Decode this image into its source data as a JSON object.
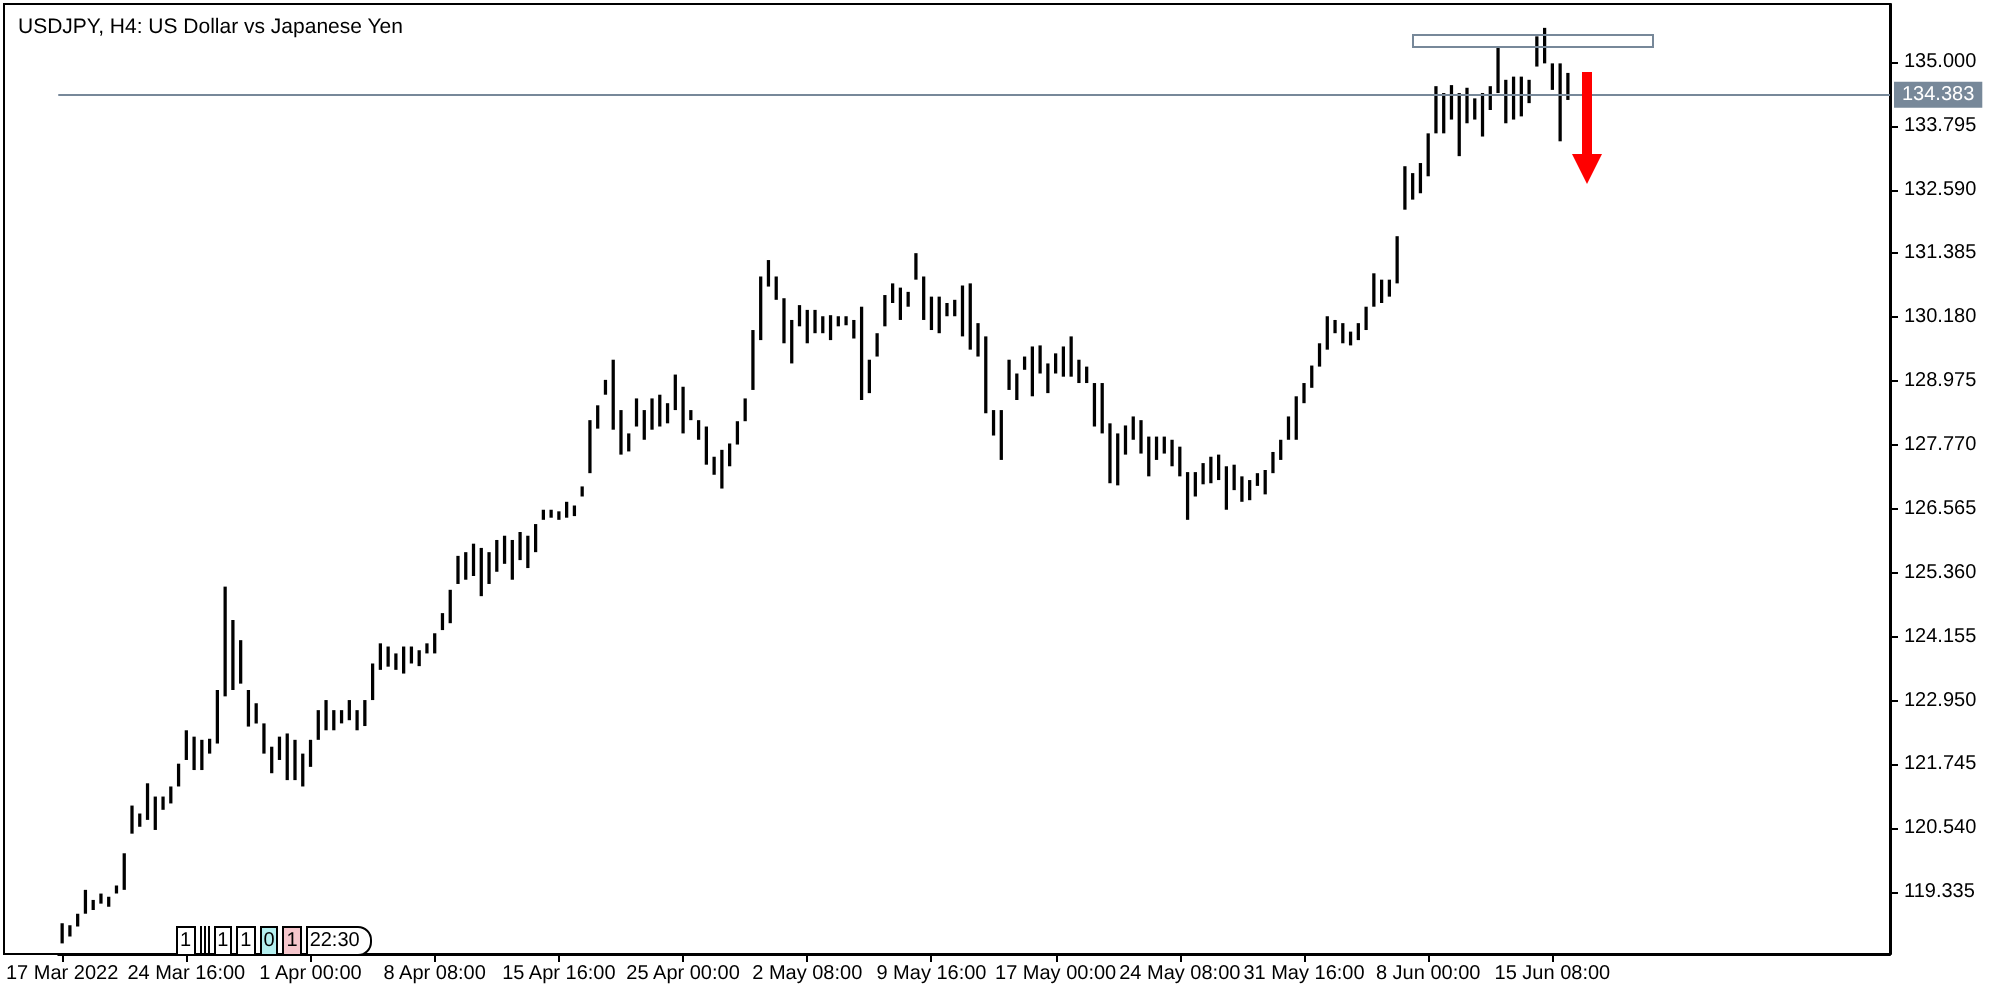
{
  "chart_data": {
    "type": "bar",
    "title": "USDJPY, H4: US Dollar vs Japanese Yen",
    "color": "#000000",
    "categories": [
      "17 Mar 2022",
      null,
      null,
      null,
      null,
      null,
      null,
      null,
      null,
      null,
      null,
      null,
      null,
      null,
      null,
      null,
      "24 Mar 16:00",
      null,
      null,
      null,
      null,
      null,
      null,
      null,
      null,
      null,
      null,
      null,
      null,
      null,
      null,
      null,
      "1 Apr 00:00",
      null,
      null,
      null,
      null,
      null,
      null,
      null,
      null,
      null,
      null,
      null,
      null,
      null,
      null,
      null,
      "8 Apr 08:00",
      null,
      null,
      null,
      null,
      null,
      null,
      null,
      null,
      null,
      null,
      null,
      null,
      null,
      null,
      null,
      "15 Apr 16:00",
      null,
      null,
      null,
      null,
      null,
      null,
      null,
      null,
      null,
      null,
      null,
      null,
      null,
      null,
      null,
      "25 Apr 00:00",
      null,
      null,
      null,
      null,
      null,
      null,
      null,
      null,
      null,
      null,
      null,
      null,
      null,
      null,
      null,
      "2 May 08:00",
      null,
      null,
      null,
      null,
      null,
      null,
      null,
      null,
      null,
      null,
      null,
      null,
      null,
      null,
      null,
      "9 May 16:00",
      null,
      null,
      null,
      null,
      null,
      null,
      null,
      null,
      null,
      null,
      null,
      null,
      null,
      null,
      null,
      "17 May 00:00",
      null,
      null,
      null,
      null,
      null,
      null,
      null,
      null,
      null,
      null,
      null,
      null,
      null,
      null,
      null,
      "24 May 08:00",
      null,
      null,
      null,
      null,
      null,
      null,
      null,
      null,
      null,
      null,
      null,
      null,
      null,
      null,
      null,
      "31 May 16:00",
      null,
      null,
      null,
      null,
      null,
      null,
      null,
      null,
      null,
      null,
      null,
      null,
      null,
      null,
      null,
      "8 Jun 00:00",
      null,
      null,
      null,
      null,
      null,
      null,
      null,
      null,
      null,
      null,
      null,
      null,
      null,
      null,
      null,
      "15 Jun 08:00",
      null,
      null,
      null,
      null,
      null,
      null,
      null,
      null,
      null,
      null,
      null,
      null,
      null,
      null,
      null,
      null,
      null,
      null,
      null,
      null,
      null,
      null,
      null,
      null,
      null,
      null,
      null,
      null,
      null,
      null,
      null,
      null,
      null,
      null,
      null,
      null,
      null,
      null,
      null,
      null,
      null,
      null,
      null
    ],
    "base": [
      118.37,
      118.5,
      118.69,
      118.93,
      119.0,
      119.12,
      119.06,
      119.31,
      119.38,
      120.44,
      120.57,
      120.7,
      120.51,
      120.89,
      121.01,
      121.33,
      121.83,
      121.64,
      121.64,
      121.95,
      122.14,
      123.03,
      123.15,
      123.27,
      122.46,
      122.52,
      121.95,
      121.58,
      121.83,
      121.45,
      121.45,
      121.33,
      121.7,
      122.21,
      122.39,
      122.39,
      122.52,
      122.58,
      122.39,
      122.47,
      122.96,
      123.53,
      123.59,
      123.53,
      123.46,
      123.65,
      123.6,
      123.84,
      123.84,
      124.28,
      124.41,
      125.15,
      125.23,
      125.3,
      124.92,
      125.15,
      125.38,
      125.53,
      125.23,
      125.6,
      125.45,
      125.75,
      126.36,
      126.4,
      126.36,
      126.4,
      126.43,
      126.8,
      127.24,
      128.08,
      128.72,
      128.06,
      127.59,
      127.65,
      128.12,
      127.87,
      128.06,
      128.12,
      128.18,
      128.43,
      127.99,
      128.24,
      127.87,
      127.4,
      127.21,
      126.95,
      127.37,
      127.78,
      128.22,
      128.81,
      129.75,
      130.76,
      130.51,
      129.69,
      129.31,
      130.01,
      129.69,
      129.88,
      129.88,
      129.75,
      130.01,
      130.03,
      129.78,
      128.62,
      128.75,
      129.44,
      130.01,
      130.45,
      130.13,
      130.38,
      130.89,
      130.13,
      129.94,
      129.88,
      130.2,
      130.2,
      129.82,
      129.57,
      129.44,
      128.37,
      127.95,
      127.49,
      128.81,
      128.62,
      129.19,
      128.69,
      129.12,
      128.75,
      129.12,
      129.06,
      129.06,
      128.94,
      128.94,
      128.12,
      127.99,
      127.05,
      127.01,
      127.59,
      127.87,
      127.61,
      127.18,
      127.49,
      127.61,
      127.37,
      127.18,
      126.36,
      126.8,
      127.03,
      127.05,
      127.11,
      126.55,
      126.92,
      126.7,
      126.73,
      127.0,
      126.84,
      127.24,
      127.49,
      127.87,
      127.87,
      128.56,
      128.85,
      129.25,
      129.57,
      129.88,
      129.69,
      129.65,
      129.75,
      129.94,
      130.38,
      130.45,
      130.57,
      130.82,
      132.21,
      132.4,
      132.52,
      132.84,
      133.65,
      133.65,
      133.91,
      133.22,
      133.84,
      133.91,
      133.59,
      134.09,
      134.41,
      133.84,
      133.91,
      133.97,
      134.22,
      134.91,
      134.97,
      134.47,
      133.5,
      134.28,
      null,
      null,
      null,
      null,
      null,
      null,
      null,
      null,
      null,
      null,
      null,
      null,
      null,
      null,
      null,
      null,
      null,
      null,
      null,
      null,
      null,
      null,
      null,
      null,
      null,
      null,
      null,
      null,
      null,
      null,
      null,
      null,
      null,
      null,
      null,
      null,
      null,
      null,
      null,
      null,
      null
    ],
    "values": [
      0.38,
      0.21,
      0.24,
      0.45,
      0.19,
      0.19,
      0.19,
      0.15,
      0.69,
      0.53,
      0.25,
      0.69,
      0.63,
      0.25,
      0.32,
      0.43,
      0.56,
      0.63,
      0.57,
      0.28,
      1.01,
      2.07,
      1.32,
      0.82,
      0.69,
      0.38,
      0.57,
      0.5,
      0.44,
      0.88,
      0.76,
      0.62,
      0.51,
      0.56,
      0.57,
      0.38,
      0.25,
      0.38,
      0.38,
      0.49,
      0.69,
      0.5,
      0.38,
      0.31,
      0.51,
      0.32,
      0.3,
      0.19,
      0.38,
      0.32,
      0.63,
      0.53,
      0.52,
      0.61,
      0.91,
      0.6,
      0.6,
      0.53,
      0.75,
      0.53,
      0.61,
      0.53,
      0.19,
      0.15,
      0.16,
      0.3,
      0.2,
      0.19,
      1.0,
      0.44,
      0.28,
      1.32,
      0.84,
      0.34,
      0.53,
      0.56,
      0.59,
      0.6,
      0.38,
      0.67,
      0.88,
      0.19,
      0.37,
      0.72,
      0.34,
      0.73,
      0.43,
      0.44,
      0.43,
      1.13,
      1.2,
      0.5,
      0.44,
      0.85,
      0.82,
      0.4,
      0.63,
      0.44,
      0.32,
      0.47,
      0.19,
      0.17,
      0.35,
      1.76,
      0.63,
      0.44,
      0.59,
      0.37,
      0.61,
      0.28,
      0.5,
      0.82,
      0.63,
      0.69,
      0.25,
      0.31,
      0.96,
      1.25,
      0.63,
      1.45,
      0.48,
      0.94,
      0.57,
      0.5,
      0.25,
      0.94,
      0.53,
      0.56,
      0.38,
      0.57,
      0.76,
      0.44,
      0.31,
      0.82,
      0.95,
      1.13,
      0.98,
      0.55,
      0.44,
      0.63,
      0.75,
      0.44,
      0.32,
      0.5,
      0.56,
      0.9,
      0.46,
      0.4,
      0.5,
      0.48,
      0.82,
      0.48,
      0.48,
      0.38,
      0.24,
      0.46,
      0.4,
      0.38,
      0.44,
      0.82,
      0.38,
      0.42,
      0.44,
      0.63,
      0.25,
      0.38,
      0.26,
      0.32,
      0.44,
      0.63,
      0.44,
      0.32,
      0.89,
      0.82,
      0.5,
      0.57,
      0.81,
      0.89,
      0.76,
      0.65,
      1.19,
      0.67,
      0.4,
      0.82,
      0.45,
      0.88,
      0.82,
      0.81,
      0.75,
      0.44,
      0.57,
      0.67,
      0.5,
      1.47,
      0.51,
      null,
      null,
      null,
      null,
      null,
      null,
      null,
      null,
      null,
      null,
      null,
      null,
      null,
      null,
      null,
      null,
      null,
      null,
      null,
      null,
      null,
      null,
      null,
      null,
      null,
      null,
      null,
      null,
      null,
      null,
      null,
      null,
      null,
      null,
      null,
      null,
      null,
      null,
      null,
      null,
      null
    ],
    "ylim": [
      118.17,
      136.09
    ],
    "yticks": [
      {
        "value": 119.335,
        "label": "119.335"
      },
      {
        "value": 120.54,
        "label": "120.540"
      },
      {
        "value": 121.745,
        "label": "121.745"
      },
      {
        "value": 122.95,
        "label": "122.950"
      },
      {
        "value": 124.155,
        "label": "124.155"
      },
      {
        "value": 125.36,
        "label": "125.360"
      },
      {
        "value": 126.565,
        "label": "126.565"
      },
      {
        "value": 127.77,
        "label": "127.770"
      },
      {
        "value": 128.975,
        "label": "128.975"
      },
      {
        "value": 130.18,
        "label": "130.180"
      },
      {
        "value": 131.385,
        "label": "131.385"
      },
      {
        "value": 132.59,
        "label": "132.590"
      },
      {
        "value": 133.795,
        "label": "133.795"
      },
      {
        "value": 135.0,
        "label": "135.000"
      }
    ],
    "ref_lines": [
      {
        "axis": "y",
        "value": 134.383,
        "label": "134.383",
        "color": "#778899"
      }
    ],
    "annotations": [
      "1",
      "1",
      "1",
      "0",
      "1",
      "22:30"
    ]
  }
}
